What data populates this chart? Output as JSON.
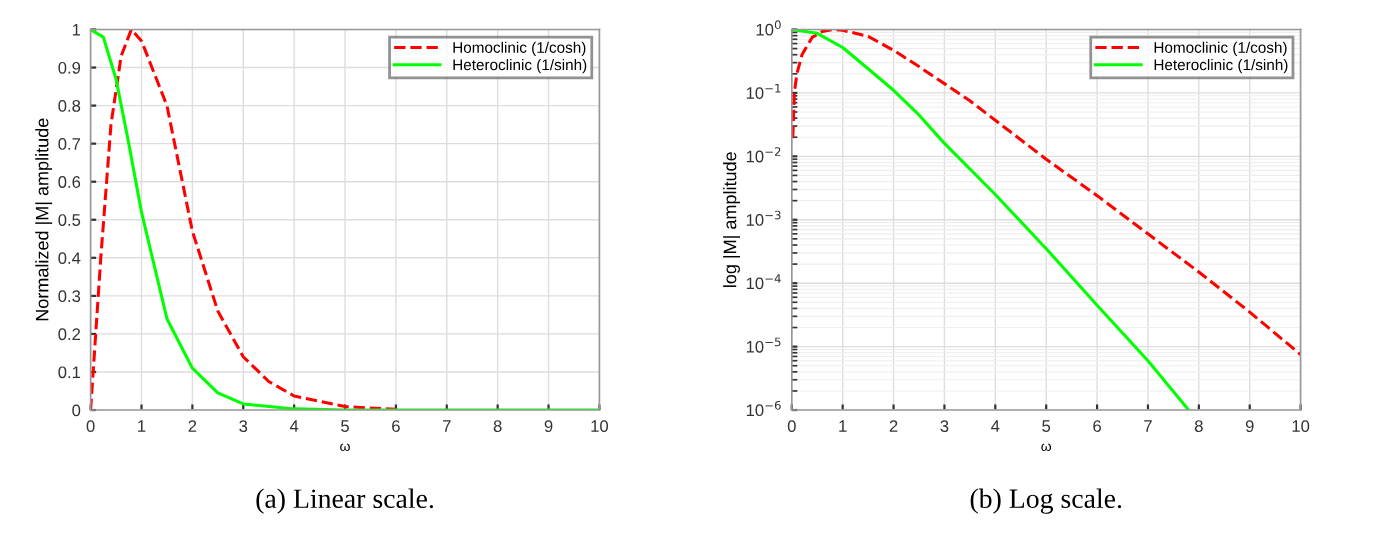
{
  "chart_data": [
    {
      "type": "line",
      "title": "(a) Linear scale.",
      "xlabel": "ω",
      "ylabel": "Normalized |M| amplitude",
      "xlim": [
        0,
        10
      ],
      "ylim": [
        0,
        1
      ],
      "xticks": [
        0,
        1,
        2,
        3,
        4,
        5,
        6,
        7,
        8,
        9,
        10
      ],
      "yticks": [
        0,
        0.1,
        0.2,
        0.3,
        0.4,
        0.5,
        0.6,
        0.7,
        0.8,
        0.9,
        1
      ],
      "grid": true,
      "legend": "top right",
      "series": [
        {
          "name": "Homoclinic (1/cosh)",
          "color": "#ff0000",
          "line_style": "dashed",
          "x": [
            0,
            0.1,
            0.2,
            0.4,
            0.6,
            0.8,
            1,
            1.5,
            2,
            2.5,
            3,
            3.5,
            4,
            5,
            6
          ],
          "values": [
            0,
            0.2,
            0.4,
            0.75,
            0.93,
            1,
            0.97,
            0.8,
            0.47,
            0.26,
            0.14,
            0.075,
            0.037,
            0.009,
            0.002
          ]
        },
        {
          "name": "Heteroclinic (1/sinh)",
          "color": "#00ff00",
          "line_style": "solid",
          "x": [
            0,
            0.25,
            0.5,
            0.75,
            1,
            1.5,
            2,
            2.5,
            3,
            4,
            5,
            10
          ],
          "values": [
            1,
            0.98,
            0.87,
            0.7,
            0.52,
            0.24,
            0.11,
            0.045,
            0.016,
            0.003,
            0,
            0
          ]
        }
      ]
    },
    {
      "type": "line",
      "title": "(b) Log scale.",
      "xlabel": "ω",
      "ylabel": "log |M| amplitude",
      "log": "y",
      "xlim": [
        0,
        10
      ],
      "ylim": [
        1e-06,
        1
      ],
      "xticks": [
        0,
        1,
        2,
        3,
        4,
        5,
        6,
        7,
        8,
        9,
        10
      ],
      "yticks": [
        {
          "value": 1e-06,
          "label": "10$^{−6}$"
        },
        {
          "value": 1e-05,
          "label": "10$^{−5}$"
        },
        {
          "value": 0.0001,
          "label": "10$^{−4}$"
        },
        {
          "value": 0.001,
          "label": "10$^{−3}$"
        },
        {
          "value": 0.01,
          "label": "10$^{−2}$"
        },
        {
          "value": 0.1,
          "label": "10$^{−1}$"
        },
        {
          "value": 1,
          "label": "10$^{0}$"
        }
      ],
      "grid": true,
      "legend": "top right",
      "series": [
        {
          "name": "Homoclinic (1/cosh)",
          "color": "#ff0000",
          "line_style": "dashed",
          "x": [
            0.02,
            0.05,
            0.1,
            0.2,
            0.4,
            0.6,
            0.8,
            1,
            1.5,
            2,
            2.5,
            3,
            3.5,
            4,
            5,
            6,
            7,
            8,
            9,
            10
          ],
          "values": [
            0.02,
            0.1,
            0.2,
            0.4,
            0.75,
            0.93,
            1,
            0.97,
            0.78,
            0.47,
            0.26,
            0.14,
            0.075,
            0.037,
            0.009,
            0.0024,
            0.0006,
            0.00015,
            3.5e-05,
            7.5e-06
          ]
        },
        {
          "name": "Heteroclinic (1/sinh)",
          "color": "#00ff00",
          "line_style": "solid",
          "x": [
            0,
            0.5,
            1,
            1.5,
            2,
            2.5,
            3,
            4,
            5,
            6,
            7,
            7.8
          ],
          "values": [
            1,
            0.87,
            0.52,
            0.24,
            0.11,
            0.045,
            0.016,
            0.0025,
            0.00035,
            4.5e-05,
            6e-06,
            1e-06
          ]
        }
      ]
    }
  ]
}
